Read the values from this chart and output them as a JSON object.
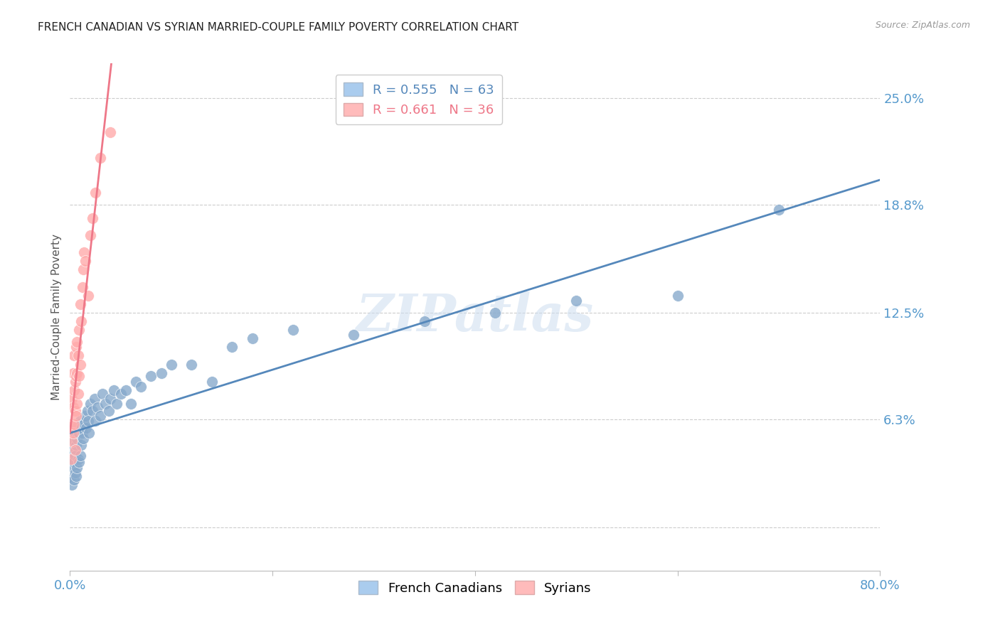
{
  "title": "FRENCH CANADIAN VS SYRIAN MARRIED-COUPLE FAMILY POVERTY CORRELATION CHART",
  "source": "Source: ZipAtlas.com",
  "ylabel": "Married-Couple Family Poverty",
  "watermark": "ZIPatlas",
  "xlim": [
    0.0,
    0.8
  ],
  "ylim": [
    -0.025,
    0.27
  ],
  "xticks": [
    0.0,
    0.2,
    0.4,
    0.6,
    0.8
  ],
  "xticklabels": [
    "0.0%",
    "",
    "",
    "",
    "80.0%"
  ],
  "ytick_positions": [
    0.0,
    0.063,
    0.125,
    0.188,
    0.25
  ],
  "ytick_labels": [
    "",
    "6.3%",
    "12.5%",
    "18.8%",
    "25.0%"
  ],
  "french_canadians": {
    "x": [
      0.001,
      0.002,
      0.002,
      0.003,
      0.003,
      0.004,
      0.004,
      0.004,
      0.005,
      0.005,
      0.005,
      0.006,
      0.006,
      0.006,
      0.007,
      0.007,
      0.008,
      0.008,
      0.009,
      0.009,
      0.01,
      0.01,
      0.011,
      0.011,
      0.012,
      0.013,
      0.014,
      0.015,
      0.016,
      0.017,
      0.018,
      0.019,
      0.02,
      0.022,
      0.024,
      0.025,
      0.027,
      0.03,
      0.032,
      0.035,
      0.038,
      0.04,
      0.043,
      0.046,
      0.05,
      0.055,
      0.06,
      0.065,
      0.07,
      0.08,
      0.09,
      0.1,
      0.12,
      0.14,
      0.16,
      0.18,
      0.22,
      0.28,
      0.35,
      0.42,
      0.5,
      0.6,
      0.7
    ],
    "y": [
      0.03,
      0.025,
      0.04,
      0.035,
      0.045,
      0.028,
      0.038,
      0.05,
      0.032,
      0.042,
      0.055,
      0.03,
      0.048,
      0.058,
      0.035,
      0.052,
      0.04,
      0.06,
      0.038,
      0.055,
      0.042,
      0.062,
      0.048,
      0.058,
      0.055,
      0.052,
      0.06,
      0.065,
      0.058,
      0.068,
      0.062,
      0.055,
      0.072,
      0.068,
      0.075,
      0.062,
      0.07,
      0.065,
      0.078,
      0.072,
      0.068,
      0.075,
      0.08,
      0.072,
      0.078,
      0.08,
      0.072,
      0.085,
      0.082,
      0.088,
      0.09,
      0.095,
      0.095,
      0.085,
      0.105,
      0.11,
      0.115,
      0.112,
      0.12,
      0.125,
      0.132,
      0.135,
      0.185
    ],
    "R": 0.555,
    "N": 63,
    "color": "#88AACC",
    "trend_color": "#5588BB"
  },
  "syrians": {
    "x": [
      0.001,
      0.001,
      0.002,
      0.002,
      0.003,
      0.003,
      0.003,
      0.004,
      0.004,
      0.004,
      0.005,
      0.005,
      0.005,
      0.006,
      0.006,
      0.006,
      0.007,
      0.007,
      0.007,
      0.008,
      0.008,
      0.009,
      0.009,
      0.01,
      0.01,
      0.011,
      0.012,
      0.013,
      0.014,
      0.015,
      0.018,
      0.02,
      0.022,
      0.025,
      0.03,
      0.04
    ],
    "y": [
      0.04,
      0.06,
      0.05,
      0.075,
      0.055,
      0.07,
      0.09,
      0.06,
      0.08,
      0.1,
      0.045,
      0.068,
      0.085,
      0.065,
      0.088,
      0.105,
      0.072,
      0.09,
      0.108,
      0.078,
      0.1,
      0.088,
      0.115,
      0.095,
      0.13,
      0.12,
      0.14,
      0.15,
      0.16,
      0.155,
      0.135,
      0.17,
      0.18,
      0.195,
      0.215,
      0.23
    ],
    "R": 0.661,
    "N": 36,
    "color": "#FFAAAA",
    "trend_color": "#EE7788"
  },
  "legend_box_color_fc": "#AACCEE",
  "legend_box_color_sy": "#FFBBBB",
  "background_color": "#FFFFFF",
  "grid_color": "#CCCCCC",
  "title_fontsize": 11,
  "tick_label_color": "#5599CC"
}
